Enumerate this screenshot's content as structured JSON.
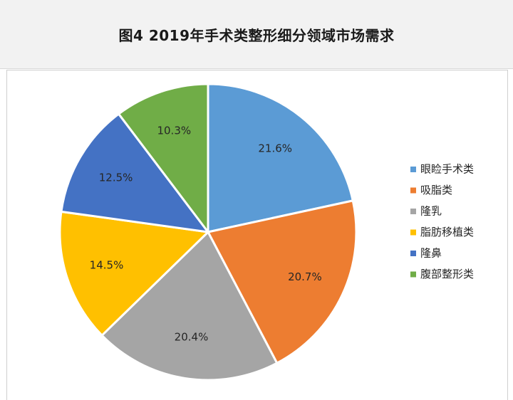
{
  "header": {
    "title": "图4   2019年手术类整形细分领域市场需求"
  },
  "chart_data": {
    "type": "pie",
    "title": "图4   2019年手术类整形细分领域市场需求",
    "legend_position": "right",
    "slices": [
      {
        "label": "眼睑手术类",
        "value": 21.6,
        "display": "21.6%",
        "color": "#5B9BD5"
      },
      {
        "label": "吸脂类",
        "value": 20.7,
        "display": "20.7%",
        "color": "#ED7D31"
      },
      {
        "label": "隆乳",
        "value": 20.4,
        "display": "20.4%",
        "color": "#A5A5A5"
      },
      {
        "label": "脂肪移植类",
        "value": 14.5,
        "display": "14.5%",
        "color": "#FFC000"
      },
      {
        "label": "隆鼻",
        "value": 12.5,
        "display": "12.5%",
        "color": "#4472C4"
      },
      {
        "label": "腹部整形类",
        "value": 10.3,
        "display": "10.3%",
        "color": "#70AD47"
      }
    ]
  }
}
